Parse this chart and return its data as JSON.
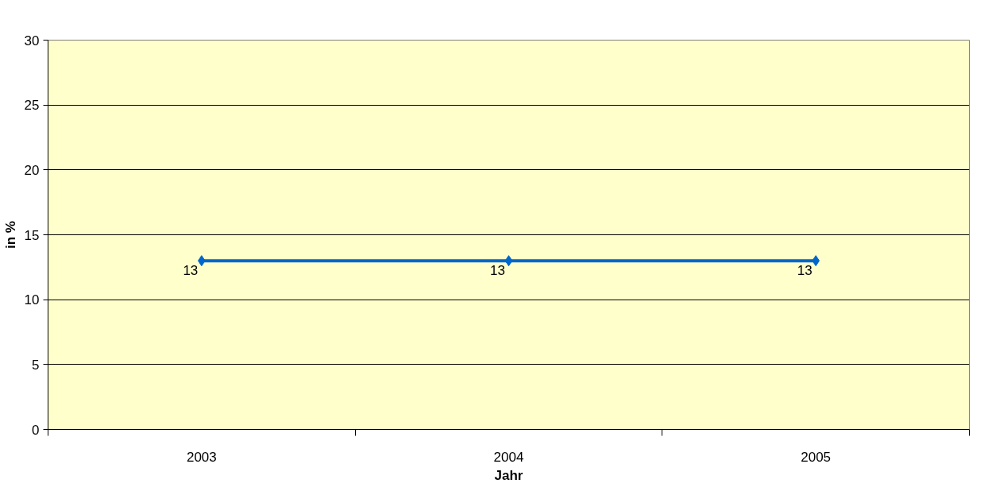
{
  "chart_data": {
    "type": "line",
    "xlabel": "Jahr",
    "ylabel": "in %",
    "categories": [
      "2003",
      "2004",
      "2005"
    ],
    "series": [
      {
        "color": "#0066cc",
        "values": [
          13,
          13,
          13
        ]
      }
    ],
    "ylim": [
      0,
      30
    ],
    "yticks": [
      0,
      5,
      10,
      15,
      20,
      25,
      30
    ],
    "grid": "y",
    "marker": "diamond",
    "line_style": "solid",
    "data_labels": true
  }
}
